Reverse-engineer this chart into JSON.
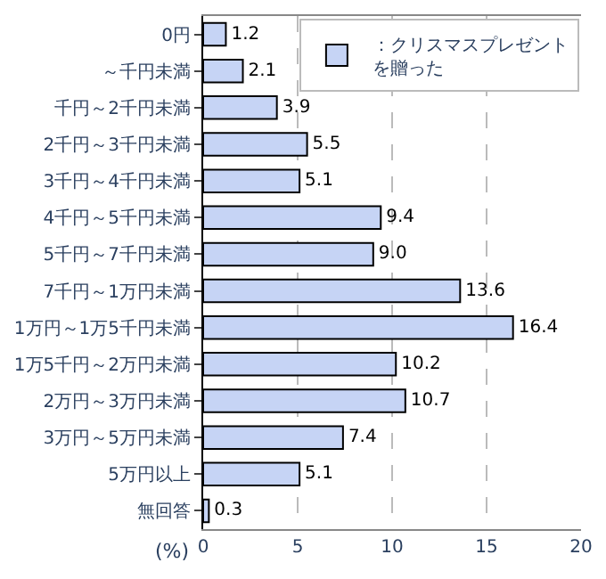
{
  "chart_data": {
    "type": "bar",
    "orientation": "horizontal",
    "xlabel": "(%)",
    "categories": [
      "0円",
      "～千円未満",
      "千円～2千円未満",
      "2千円～3千円未満",
      "3千円～4千円未満",
      "4千円～5千円未満",
      "5千円～7千円未満",
      "7千円～1万円未満",
      "1万円～1万5千円未満",
      "1万5千円～2万円未満",
      "2万円～3万円未満",
      "3万円～5万円未満",
      "5万円以上",
      "無回答"
    ],
    "series": [
      {
        "name": "：クリスマスプレゼントを贈った",
        "color": "#c6d4f5",
        "values": [
          1.2,
          2.1,
          3.9,
          5.5,
          5.1,
          9.4,
          9.0,
          13.6,
          16.4,
          10.2,
          10.7,
          7.4,
          5.1,
          0.3
        ],
        "value_labels": [
          "1.2",
          "2.1",
          "3.9",
          "5.5",
          "5.1",
          "9.4",
          "9.0",
          "13.6",
          "16.4",
          "10.2",
          "10.7",
          "7.4",
          "5.1",
          "0.3"
        ]
      }
    ],
    "xlim": [
      0,
      20
    ],
    "xticks": [
      0,
      5,
      10,
      15,
      20
    ],
    "grid": "x",
    "legend": "top right"
  }
}
